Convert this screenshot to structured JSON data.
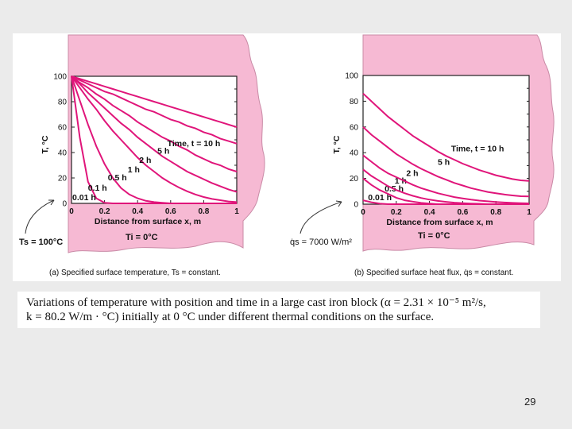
{
  "chart_data": [
    {
      "type": "line",
      "id": "a",
      "ylabel": "T, °C",
      "xlabel": "Distance from surface x, m",
      "xlim": [
        0,
        1
      ],
      "ylim": [
        0,
        100
      ],
      "x_ticks": [
        "0",
        "0.2",
        "0.4",
        "0.6",
        "0.8",
        "1"
      ],
      "y_ticks": [
        "0",
        "20",
        "40",
        "60",
        "80",
        "100"
      ],
      "x": [
        0,
        0.05,
        0.1,
        0.15,
        0.2,
        0.25,
        0.3,
        0.35,
        0.4,
        0.45,
        0.5,
        0.55,
        0.6,
        0.65,
        0.7,
        0.75,
        0.8,
        0.85,
        0.9,
        0.95,
        1.0
      ],
      "series": [
        {
          "name": "0.01 h",
          "label": "0.01 h",
          "values": [
            100,
            52,
            17,
            4,
            0.5,
            0,
            0,
            0,
            0,
            0,
            0,
            0,
            0,
            0,
            0,
            0,
            0,
            0,
            0,
            0,
            0
          ]
        },
        {
          "name": "0.1 h",
          "label": "0.1 h",
          "values": [
            100,
            81,
            62,
            45,
            31,
            20,
            12,
            7,
            4,
            2,
            1,
            0.5,
            0,
            0,
            0,
            0,
            0,
            0,
            0,
            0,
            0
          ]
        },
        {
          "name": "0.5 h",
          "label": "0.5 h",
          "values": [
            100,
            91,
            82,
            74,
            65,
            57,
            50,
            43,
            36,
            30,
            25,
            20,
            16,
            12.5,
            9.5,
            7,
            5,
            3.5,
            2.5,
            1.5,
            1
          ]
        },
        {
          "name": "1 h",
          "label": "1 h",
          "values": [
            100,
            94,
            87,
            81,
            75,
            69,
            63,
            58,
            52,
            47,
            42,
            37,
            33,
            29,
            25,
            22,
            19,
            16,
            13.5,
            11,
            9
          ]
        },
        {
          "name": "2 h",
          "label": "2 h",
          "values": [
            100,
            95,
            91,
            86,
            82,
            77,
            73,
            69,
            64,
            60,
            56,
            52,
            49,
            45,
            42,
            38,
            35,
            32,
            30,
            27,
            25
          ]
        },
        {
          "name": "5 h",
          "label": "5 h",
          "values": [
            100,
            97,
            94,
            91,
            88,
            86,
            83,
            80,
            77,
            74,
            72,
            69,
            66,
            64,
            61,
            59,
            56,
            54,
            51,
            49,
            47
          ]
        },
        {
          "name": "10 h",
          "label": "Time, t = 10 h",
          "values": [
            100,
            98,
            96,
            94,
            92,
            90,
            88,
            86,
            84,
            82,
            80,
            78,
            76,
            74,
            72,
            70,
            68,
            66,
            64,
            62,
            60
          ]
        }
      ],
      "left_annotation": "Ts = 100°C",
      "initial_annotation": "Ti = 0°C",
      "caption": "(a) Specified surface temperature, Ts = constant."
    },
    {
      "type": "line",
      "id": "b",
      "ylabel": "T, °C",
      "xlabel": "Distance from surface x, m",
      "xlim": [
        0,
        1
      ],
      "ylim": [
        0,
        100
      ],
      "x_ticks": [
        "0",
        "0.2",
        "0.4",
        "0.6",
        "0.8",
        "1"
      ],
      "y_ticks": [
        "0",
        "20",
        "40",
        "60",
        "80",
        "100"
      ],
      "x": [
        0,
        0.05,
        0.1,
        0.15,
        0.2,
        0.25,
        0.3,
        0.35,
        0.4,
        0.45,
        0.5,
        0.55,
        0.6,
        0.65,
        0.7,
        0.75,
        0.8,
        0.85,
        0.9,
        0.95,
        1.0
      ],
      "series": [
        {
          "name": "0.01 h",
          "label": "0.01 h",
          "values": [
            3,
            1.5,
            0.5,
            0,
            0,
            0,
            0,
            0,
            0,
            0,
            0,
            0,
            0,
            0,
            0,
            0,
            0,
            0,
            0,
            0,
            0
          ]
        },
        {
          "name": "0.5 h",
          "label": "0.5 h",
          "values": [
            20,
            15,
            11,
            8,
            5,
            3,
            2,
            1,
            0.5,
            0,
            0,
            0,
            0,
            0,
            0,
            0,
            0,
            0,
            0,
            0,
            0
          ]
        },
        {
          "name": "1 h",
          "label": "1 h",
          "values": [
            27,
            22,
            18,
            14,
            11,
            8.5,
            6.5,
            4.8,
            3.5,
            2.5,
            1.8,
            1.2,
            0.8,
            0.5,
            0.3,
            0,
            0,
            0,
            0,
            0,
            0
          ]
        },
        {
          "name": "2 h",
          "label": "2 h",
          "values": [
            38,
            33,
            28,
            24,
            21,
            18,
            15,
            12.5,
            10.5,
            8.5,
            7,
            5.5,
            4.5,
            3.5,
            2.8,
            2.2,
            1.7,
            1.3,
            1,
            0.8,
            0.6
          ]
        },
        {
          "name": "5 h",
          "label": "5 h",
          "values": [
            60,
            54,
            49,
            44,
            39,
            35,
            31,
            27.5,
            24.5,
            21.5,
            19,
            16.5,
            14.5,
            12.5,
            11,
            9.5,
            8.5,
            7.5,
            6.8,
            6.2,
            6
          ]
        },
        {
          "name": "10 h",
          "label": "Time, t = 10 h",
          "values": [
            86,
            80,
            74,
            68,
            63,
            58,
            53,
            49,
            45,
            41,
            37.5,
            34.5,
            31.5,
            29,
            26.5,
            24.5,
            22.5,
            21,
            19.5,
            18.5,
            18
          ]
        }
      ],
      "left_annotation": "q̇s = 7000 W/m²",
      "initial_annotation": "Ti = 0°C",
      "caption": "(b) Specified surface heat flux, q̇s = constant."
    }
  ],
  "caption": {
    "line1": "Variations of temperature with position and time in a large cast iron block (α = 2.31 × 10⁻⁵ m²/s,",
    "line2": "k = 80.2 W/m · °C) initially at 0 °C under different thermal conditions on the surface."
  },
  "page_number": "29",
  "colors": {
    "curve": "#e0157a",
    "pink_fill": "#f6b9d3",
    "axis": "#222222",
    "slide_bg": "#ebebeb"
  }
}
